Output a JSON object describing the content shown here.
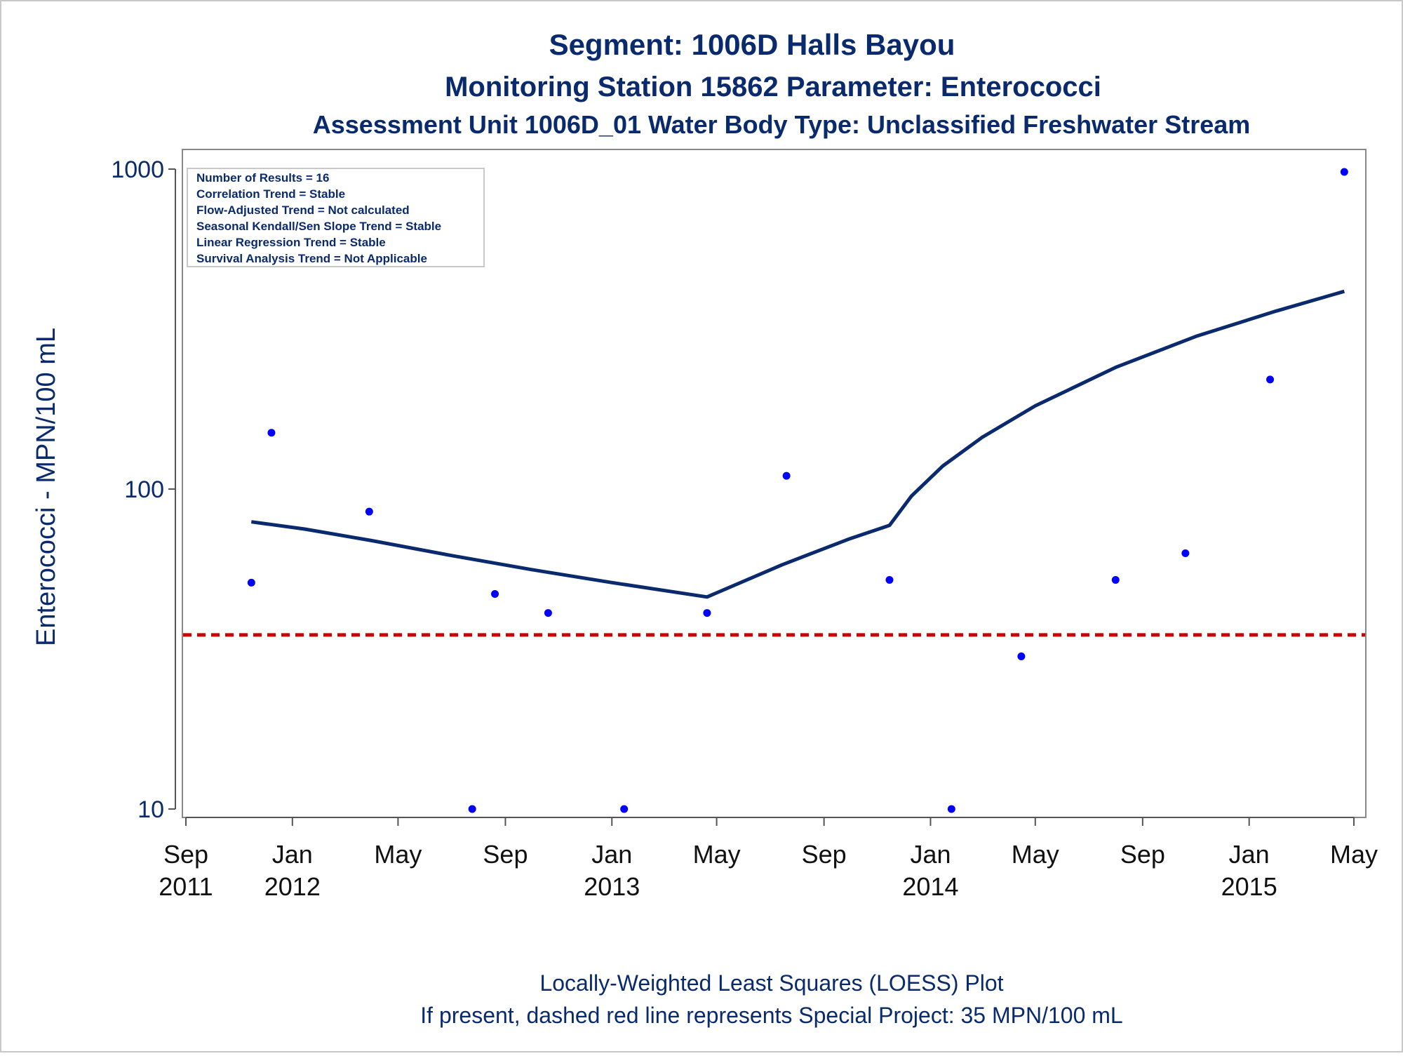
{
  "chart_data": {
    "type": "scatter",
    "title": "Segment: 1006D  Halls Bayou",
    "subtitle": "Monitoring Station 15862 Parameter: Enterococci",
    "subtitle2": "Assessment Unit 1006D_01   Water Body Type: Unclassified Freshwater Stream",
    "ylabel": "Enterococci - MPN/100 mL",
    "xlabel": "",
    "y_scale": "log",
    "ylim": [
      10,
      1000
    ],
    "xlim": [
      "2011-09-01",
      "2015-05-01"
    ],
    "grid": false,
    "y_ticks": [
      {
        "value": 1000,
        "label": "1000"
      },
      {
        "value": 100,
        "label": "100"
      },
      {
        "value": 10,
        "label": "10"
      }
    ],
    "x_ticks": [
      {
        "date": "2011-09-01",
        "line1": "Sep",
        "line2": "2011"
      },
      {
        "date": "2012-01-01",
        "line1": "Jan",
        "line2": "2012"
      },
      {
        "date": "2012-05-01",
        "line1": "May",
        "line2": ""
      },
      {
        "date": "2012-09-01",
        "line1": "Sep",
        "line2": ""
      },
      {
        "date": "2013-01-01",
        "line1": "Jan",
        "line2": "2013"
      },
      {
        "date": "2013-05-01",
        "line1": "May",
        "line2": ""
      },
      {
        "date": "2013-09-01",
        "line1": "Sep",
        "line2": ""
      },
      {
        "date": "2014-01-01",
        "line1": "Jan",
        "line2": "2014"
      },
      {
        "date": "2014-05-01",
        "line1": "May",
        "line2": ""
      },
      {
        "date": "2014-09-01",
        "line1": "Sep",
        "line2": ""
      },
      {
        "date": "2015-01-01",
        "line1": "Jan",
        "line2": "2015"
      },
      {
        "date": "2015-05-01",
        "line1": "May",
        "line2": ""
      }
    ],
    "legend_box": {
      "placement": "top-left",
      "lines": [
        "Number of Results = 16",
        "Correlation Trend = Stable",
        "Flow-Adjusted Trend = Not calculated",
        "Seasonal Kendall/Sen Slope Trend = Stable",
        "Linear Regression Trend = Stable",
        "Survival Analysis Trend = Not Applicable"
      ]
    },
    "series": [
      {
        "type": "scatter",
        "color": "#0000ff",
        "points": [
          {
            "x": "2011-11-15",
            "y": 51
          },
          {
            "x": "2011-12-08",
            "y": 150
          },
          {
            "x": "2012-03-29",
            "y": 85
          },
          {
            "x": "2012-07-25",
            "y": 10
          },
          {
            "x": "2012-08-20",
            "y": 47
          },
          {
            "x": "2012-10-20",
            "y": 41
          },
          {
            "x": "2013-01-15",
            "y": 10
          },
          {
            "x": "2013-04-20",
            "y": 41
          },
          {
            "x": "2013-07-20",
            "y": 110
          },
          {
            "x": "2013-11-15",
            "y": 52
          },
          {
            "x": "2014-01-25",
            "y": 10
          },
          {
            "x": "2014-04-15",
            "y": 30
          },
          {
            "x": "2014-08-01",
            "y": 52
          },
          {
            "x": "2014-10-20",
            "y": 63
          },
          {
            "x": "2015-01-25",
            "y": 220
          },
          {
            "x": "2015-04-20",
            "y": 980
          }
        ]
      },
      {
        "type": "line",
        "color": "#0a2a6e",
        "points": [
          {
            "x": "2011-11-15",
            "y": 79
          },
          {
            "x": "2012-01-15",
            "y": 75
          },
          {
            "x": "2012-04-01",
            "y": 69
          },
          {
            "x": "2012-07-01",
            "y": 62
          },
          {
            "x": "2012-10-01",
            "y": 56
          },
          {
            "x": "2013-01-01",
            "y": 51
          },
          {
            "x": "2013-04-20",
            "y": 46
          },
          {
            "x": "2013-07-15",
            "y": 58
          },
          {
            "x": "2013-10-01",
            "y": 70
          },
          {
            "x": "2013-11-15",
            "y": 77
          },
          {
            "x": "2013-12-10",
            "y": 95
          },
          {
            "x": "2014-01-15",
            "y": 118
          },
          {
            "x": "2014-03-01",
            "y": 145
          },
          {
            "x": "2014-05-01",
            "y": 182
          },
          {
            "x": "2014-08-01",
            "y": 240
          },
          {
            "x": "2014-11-01",
            "y": 300
          },
          {
            "x": "2015-02-01",
            "y": 360
          },
          {
            "x": "2015-04-20",
            "y": 415
          }
        ]
      },
      {
        "type": "reference_line",
        "color": "#cc0000",
        "style": "dashed",
        "y": 35
      }
    ],
    "footnote1": "Locally-Weighted Least Squares (LOESS) Plot",
    "footnote2": "If present, dashed red line represents Special Project: 35 MPN/100 mL"
  }
}
